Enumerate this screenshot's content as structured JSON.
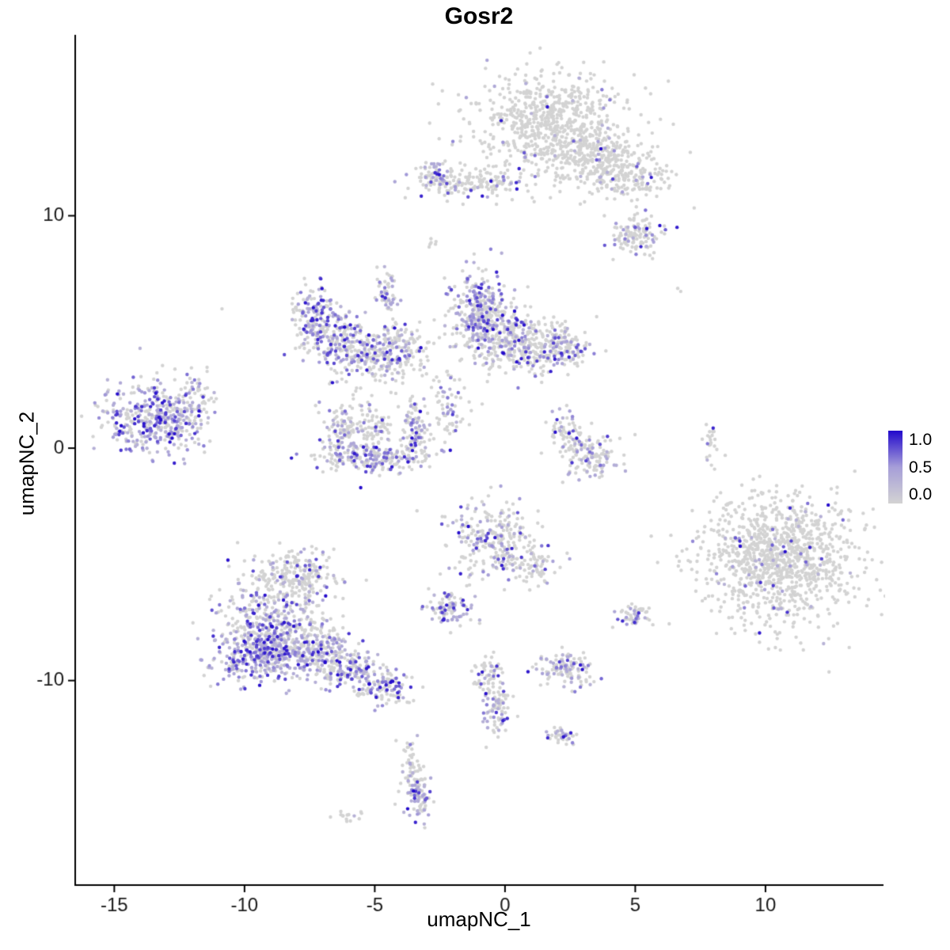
{
  "chart_data": {
    "type": "scatter",
    "title": "Gosr2",
    "xlabel": "umapNC_1",
    "ylabel": "umapNC_2",
    "xlim": [
      -16.5,
      14.5
    ],
    "ylim": [
      -18.8,
      17.75
    ],
    "x_ticks": [
      -15,
      -10,
      -5,
      0,
      5,
      10
    ],
    "y_ticks": [
      10,
      0,
      -10
    ],
    "grid": false,
    "point_radius": 2.2,
    "legend": {
      "position": "right",
      "tick_labels": [
        "1.0",
        "0.5",
        "0.0"
      ],
      "gradient_stops": [
        "#D3D3D3",
        "#A69ED8",
        "#2209CC"
      ]
    },
    "description": "UMAP feature plot of Gosr2 expression; gray points are non-expressing cells, purple-blue points expressing cells (0.0 to 1.0 scale). Clusters given as gaussian blobs in umap coordinates.",
    "clusters": [
      {
        "cx": 1.7,
        "cy": 13.9,
        "sx": 1.5,
        "sy": 1.15,
        "n": 700,
        "f": 0.04
      },
      {
        "cx": 3.4,
        "cy": 12.5,
        "sx": 0.9,
        "sy": 0.7,
        "n": 220,
        "f": 0.06
      },
      {
        "cx": 5.0,
        "cy": 11.7,
        "sx": 0.8,
        "sy": 0.55,
        "n": 170,
        "f": 0.12
      },
      {
        "cx": -1.4,
        "cy": 11.4,
        "sx": 1.1,
        "sy": 0.35,
        "n": 160,
        "f": 0.22
      },
      {
        "cx": -2.7,
        "cy": 11.7,
        "sx": 0.3,
        "sy": 0.3,
        "n": 50,
        "f": 0.4
      },
      {
        "cx": 5.1,
        "cy": 9.2,
        "sx": 0.55,
        "sy": 0.45,
        "n": 120,
        "f": 0.3
      },
      {
        "cx": -2.8,
        "cy": 8.8,
        "sx": 0.12,
        "sy": 0.2,
        "n": 6,
        "f": 0.2
      },
      {
        "cx": -7.2,
        "cy": 5.8,
        "sx": 0.5,
        "sy": 0.55,
        "n": 150,
        "f": 0.5
      },
      {
        "cx": -6.3,
        "cy": 4.6,
        "sx": 0.8,
        "sy": 0.55,
        "n": 200,
        "f": 0.4
      },
      {
        "cx": -5.0,
        "cy": 3.9,
        "sx": 0.8,
        "sy": 0.5,
        "n": 170,
        "f": 0.35
      },
      {
        "cx": -4.6,
        "cy": 6.6,
        "sx": 0.25,
        "sy": 0.6,
        "n": 60,
        "f": 0.4
      },
      {
        "cx": -4.0,
        "cy": 4.5,
        "sx": 0.45,
        "sy": 0.4,
        "n": 70,
        "f": 0.3
      },
      {
        "cx": -1.0,
        "cy": 6.0,
        "sx": 0.55,
        "sy": 0.8,
        "n": 240,
        "f": 0.45
      },
      {
        "cx": -0.3,
        "cy": 4.9,
        "sx": 0.8,
        "sy": 0.65,
        "n": 240,
        "f": 0.35
      },
      {
        "cx": 1.2,
        "cy": 4.4,
        "sx": 0.9,
        "sy": 0.6,
        "n": 210,
        "f": 0.25
      },
      {
        "cx": 2.2,
        "cy": 4.3,
        "sx": 0.5,
        "sy": 0.45,
        "n": 100,
        "f": 0.3
      },
      {
        "cx": -2.1,
        "cy": 1.8,
        "sx": 0.3,
        "sy": 0.8,
        "n": 60,
        "f": 0.3
      },
      {
        "cx": -3.6,
        "cy": 3.2,
        "sx": 1.4,
        "sy": 1.1,
        "n": 60,
        "f": 0.1
      },
      {
        "cx": -13.5,
        "cy": 1.2,
        "sx": 1.0,
        "sy": 0.75,
        "n": 420,
        "f": 0.6
      },
      {
        "cx": -11.9,
        "cy": 2.2,
        "sx": 0.4,
        "sy": 0.5,
        "n": 55,
        "f": 0.3
      },
      {
        "cx": -5.0,
        "cy": -0.4,
        "sx": 1.05,
        "sy": 0.35,
        "n": 200,
        "f": 0.45
      },
      {
        "cx": -6.2,
        "cy": 0.6,
        "sx": 0.35,
        "sy": 0.65,
        "n": 100,
        "f": 0.35
      },
      {
        "cx": -3.4,
        "cy": 0.8,
        "sx": 0.3,
        "sy": 0.6,
        "n": 80,
        "f": 0.35
      },
      {
        "cx": -5.0,
        "cy": 0.9,
        "sx": 0.7,
        "sy": 0.5,
        "n": 90,
        "f": 0.12
      },
      {
        "cx": 3.4,
        "cy": -0.4,
        "sx": 0.55,
        "sy": 0.45,
        "n": 120,
        "f": 0.3
      },
      {
        "cx": 2.3,
        "cy": 0.6,
        "sx": 0.35,
        "sy": 0.55,
        "n": 70,
        "f": 0.2
      },
      {
        "cx": 7.9,
        "cy": 0.2,
        "sx": 0.15,
        "sy": 0.5,
        "n": 22,
        "f": 0.15
      },
      {
        "cx": 10.5,
        "cy": -4.8,
        "sx": 1.5,
        "sy": 1.35,
        "n": 1100,
        "f": 0.055
      },
      {
        "cx": -0.4,
        "cy": -4.0,
        "sx": 0.85,
        "sy": 0.85,
        "n": 280,
        "f": 0.3
      },
      {
        "cx": 1.2,
        "cy": -5.0,
        "sx": 0.4,
        "sy": 0.4,
        "n": 60,
        "f": 0.2
      },
      {
        "cx": -2.2,
        "cy": -6.9,
        "sx": 0.45,
        "sy": 0.32,
        "n": 90,
        "f": 0.55
      },
      {
        "cx": -8.2,
        "cy": -5.5,
        "sx": 0.85,
        "sy": 0.55,
        "n": 240,
        "f": 0.2
      },
      {
        "cx": -9.0,
        "cy": -7.4,
        "sx": 1.0,
        "sy": 0.75,
        "n": 340,
        "f": 0.45
      },
      {
        "cx": -9.3,
        "cy": -8.9,
        "sx": 0.95,
        "sy": 0.6,
        "n": 360,
        "f": 0.6
      },
      {
        "cx": -7.3,
        "cy": -8.7,
        "sx": 0.75,
        "sy": 0.55,
        "n": 200,
        "f": 0.4
      },
      {
        "cx": -5.9,
        "cy": -9.6,
        "sx": 0.6,
        "sy": 0.45,
        "n": 150,
        "f": 0.45
      },
      {
        "cx": -4.6,
        "cy": -10.3,
        "sx": 0.5,
        "sy": 0.35,
        "n": 100,
        "f": 0.4
      },
      {
        "cx": 5.0,
        "cy": -7.2,
        "sx": 0.35,
        "sy": 0.3,
        "n": 50,
        "f": 0.35
      },
      {
        "cx": 2.3,
        "cy": -9.5,
        "sx": 0.5,
        "sy": 0.4,
        "n": 120,
        "f": 0.35
      },
      {
        "cx": -0.6,
        "cy": -9.8,
        "sx": 0.3,
        "sy": 0.5,
        "n": 60,
        "f": 0.3
      },
      {
        "cx": -0.3,
        "cy": -11.3,
        "sx": 0.28,
        "sy": 0.6,
        "n": 70,
        "f": 0.35
      },
      {
        "cx": 2.2,
        "cy": -12.4,
        "sx": 0.3,
        "sy": 0.25,
        "n": 40,
        "f": 0.4
      },
      {
        "cx": -3.6,
        "cy": -13.6,
        "sx": 0.25,
        "sy": 0.5,
        "n": 50,
        "f": 0.15
      },
      {
        "cx": -3.3,
        "cy": -15.0,
        "sx": 0.3,
        "sy": 0.5,
        "n": 80,
        "f": 0.45
      },
      {
        "cx": -6.0,
        "cy": -15.8,
        "sx": 0.3,
        "sy": 0.15,
        "n": 14,
        "f": 0.1
      },
      {
        "cx": 6.8,
        "cy": 6.8,
        "sx": 0.1,
        "sy": 0.1,
        "n": 2,
        "f": 0
      },
      {
        "cx": -10.8,
        "cy": 6.0,
        "sx": 0.05,
        "sy": 0.05,
        "n": 1,
        "f": 0
      },
      {
        "cx": 7.9,
        "cy": 0.8,
        "sx": 0.05,
        "sy": 0.05,
        "n": 1,
        "f": 1
      }
    ]
  }
}
